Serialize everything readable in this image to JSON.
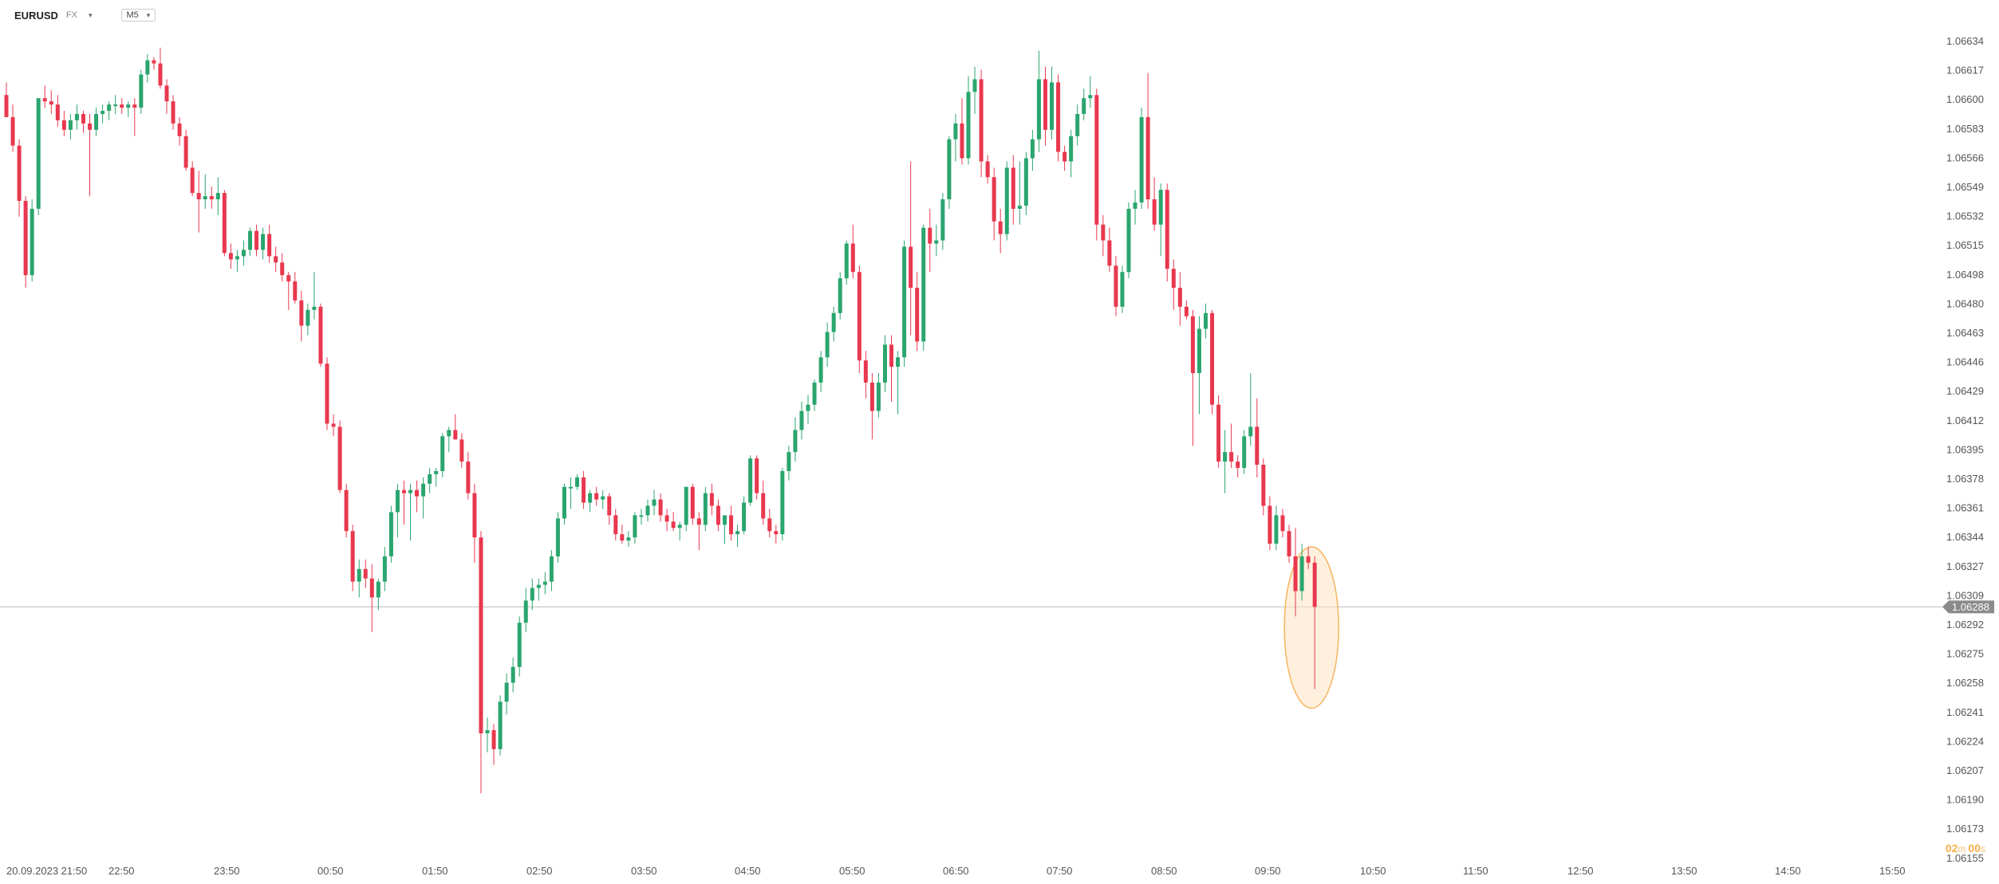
{
  "header": {
    "symbol": "EURUSD",
    "symbol_type": "FX",
    "timeframe": "M5"
  },
  "timer": {
    "minutes": "02",
    "minutes_unit": "m",
    "seconds": "00",
    "seconds_unit": "s"
  },
  "colors": {
    "up": "#2aa56e",
    "down": "#e8384f",
    "grid_line": "#c8c8c8",
    "axis_text": "#555555",
    "price_label_bg": "#8b8b8b",
    "highlight_fill": "#fde6c6",
    "highlight_stroke": "#f5b561"
  },
  "chart_data": {
    "type": "candlestick",
    "timeframe": "M5",
    "current_price": 1.06288,
    "current_price_label": "1.06288",
    "ylim": [
      1.06155,
      1.06655
    ],
    "y_ticks": [
      "1.06634",
      "1.06617",
      "1.06600",
      "1.06583",
      "1.06566",
      "1.06549",
      "1.06532",
      "1.06515",
      "1.06498",
      "1.06480",
      "1.06463",
      "1.06446",
      "1.06429",
      "1.06412",
      "1.06395",
      "1.06378",
      "1.06361",
      "1.06344",
      "1.06327",
      "1.06309",
      "1.06292",
      "1.06275",
      "1.06258",
      "1.06241",
      "1.06224",
      "1.06207",
      "1.06190",
      "1.06173",
      "1.06155"
    ],
    "x_labels": [
      "20.09.2023  21:50",
      "22:50",
      "23:50",
      "00:50",
      "01:50",
      "02:50",
      "03:50",
      "04:50",
      "05:50",
      "06:50",
      "07:50",
      "08:50",
      "09:50",
      "10:50",
      "11:50",
      "12:50",
      "13:50",
      "14:50",
      "15:50"
    ],
    "highlight": "last candle circled",
    "candles": [
      [
        1.06612,
        1.0662,
        1.066,
        1.06598
      ],
      [
        1.06598,
        1.06606,
        1.06576,
        1.0658
      ],
      [
        1.0658,
        1.06584,
        1.06535,
        1.06545
      ],
      [
        1.06545,
        1.06548,
        1.0649,
        1.06498
      ],
      [
        1.06498,
        1.06546,
        1.06494,
        1.0654
      ],
      [
        1.0654,
        1.0661,
        1.06536,
        1.0661
      ],
      [
        1.0661,
        1.06618,
        1.06604,
        1.06608
      ],
      [
        1.06608,
        1.06615,
        1.066,
        1.06606
      ],
      [
        1.06606,
        1.06612,
        1.06592,
        1.06596
      ],
      [
        1.06596,
        1.06602,
        1.06586,
        1.0659
      ],
      [
        1.0659,
        1.066,
        1.06584,
        1.06596
      ],
      [
        1.06596,
        1.06606,
        1.0659,
        1.066
      ],
      [
        1.066,
        1.06602,
        1.06588,
        1.06594
      ],
      [
        1.06594,
        1.066,
        1.06548,
        1.0659
      ],
      [
        1.0659,
        1.06604,
        1.06586,
        1.066
      ],
      [
        1.066,
        1.06606,
        1.06594,
        1.06602
      ],
      [
        1.06602,
        1.06608,
        1.06596,
        1.06606
      ],
      [
        1.06606,
        1.06612,
        1.066,
        1.06606
      ],
      [
        1.06606,
        1.0661,
        1.066,
        1.06604
      ],
      [
        1.06604,
        1.06608,
        1.06598,
        1.06606
      ],
      [
        1.06606,
        1.0661,
        1.06586,
        1.06604
      ],
      [
        1.06604,
        1.06628,
        1.066,
        1.06625
      ],
      [
        1.06625,
        1.06638,
        1.0662,
        1.06634
      ],
      [
        1.06634,
        1.06636,
        1.06628,
        1.06632
      ],
      [
        1.06632,
        1.06642,
        1.06616,
        1.06618
      ],
      [
        1.06618,
        1.06622,
        1.066,
        1.06608
      ],
      [
        1.06608,
        1.06612,
        1.0659,
        1.06594
      ],
      [
        1.06594,
        1.06598,
        1.0658,
        1.06586
      ],
      [
        1.06586,
        1.0659,
        1.06564,
        1.06566
      ],
      [
        1.06566,
        1.0657,
        1.06548,
        1.0655
      ],
      [
        1.0655,
        1.06564,
        1.06525,
        1.06546
      ],
      [
        1.06546,
        1.06562,
        1.0654,
        1.06548
      ],
      [
        1.06548,
        1.06554,
        1.0654,
        1.06546
      ],
      [
        1.06546,
        1.0656,
        1.06536,
        1.0655
      ],
      [
        1.0655,
        1.06552,
        1.0651,
        1.06512
      ],
      [
        1.06512,
        1.06518,
        1.06502,
        1.06508
      ],
      [
        1.06508,
        1.06514,
        1.065,
        1.0651
      ],
      [
        1.0651,
        1.0652,
        1.06504,
        1.06514
      ],
      [
        1.06514,
        1.06528,
        1.0651,
        1.06526
      ],
      [
        1.06526,
        1.0653,
        1.0651,
        1.06514
      ],
      [
        1.06514,
        1.06528,
        1.06508,
        1.06524
      ],
      [
        1.06524,
        1.0653,
        1.06506,
        1.0651
      ],
      [
        1.0651,
        1.06516,
        1.065,
        1.06506
      ],
      [
        1.06506,
        1.06512,
        1.06494,
        1.06498
      ],
      [
        1.06498,
        1.065,
        1.06476,
        1.06494
      ],
      [
        1.06494,
        1.065,
        1.0648,
        1.06482
      ],
      [
        1.06482,
        1.06488,
        1.06456,
        1.06466
      ],
      [
        1.06466,
        1.0648,
        1.0646,
        1.06476
      ],
      [
        1.06476,
        1.065,
        1.0647,
        1.06478
      ],
      [
        1.06478,
        1.0648,
        1.0644,
        1.06442
      ],
      [
        1.06442,
        1.06446,
        1.064,
        1.06404
      ],
      [
        1.06404,
        1.0641,
        1.06396,
        1.06402
      ],
      [
        1.06402,
        1.06406,
        1.0636,
        1.06362
      ],
      [
        1.06362,
        1.06366,
        1.06332,
        1.06336
      ],
      [
        1.06336,
        1.0634,
        1.06298,
        1.06304
      ],
      [
        1.06304,
        1.06318,
        1.06294,
        1.06312
      ],
      [
        1.06312,
        1.06318,
        1.063,
        1.06306
      ],
      [
        1.06306,
        1.06315,
        1.06272,
        1.06294
      ],
      [
        1.06294,
        1.06306,
        1.06286,
        1.06304
      ],
      [
        1.06304,
        1.06326,
        1.06298,
        1.0632
      ],
      [
        1.0632,
        1.06352,
        1.06316,
        1.06348
      ],
      [
        1.06348,
        1.06366,
        1.06332,
        1.06362
      ],
      [
        1.06362,
        1.06368,
        1.0634,
        1.0636
      ],
      [
        1.0636,
        1.06366,
        1.0633,
        1.06362
      ],
      [
        1.06362,
        1.06368,
        1.06348,
        1.06358
      ],
      [
        1.06358,
        1.0637,
        1.06344,
        1.06366
      ],
      [
        1.06366,
        1.06376,
        1.0636,
        1.06372
      ],
      [
        1.06372,
        1.06376,
        1.06364,
        1.06374
      ],
      [
        1.06374,
        1.06398,
        1.0637,
        1.06396
      ],
      [
        1.06396,
        1.06402,
        1.06386,
        1.064
      ],
      [
        1.064,
        1.0641,
        1.06394,
        1.06394
      ],
      [
        1.06394,
        1.06398,
        1.06376,
        1.0638
      ],
      [
        1.0638,
        1.06386,
        1.06356,
        1.0636
      ],
      [
        1.0636,
        1.06366,
        1.06316,
        1.06332
      ],
      [
        1.06332,
        1.06336,
        1.0617,
        1.06208
      ],
      [
        1.06208,
        1.06218,
        1.06196,
        1.0621
      ],
      [
        1.0621,
        1.06214,
        1.06188,
        1.06198
      ],
      [
        1.06198,
        1.06232,
        1.06194,
        1.06228
      ],
      [
        1.06228,
        1.06246,
        1.0622,
        1.0624
      ],
      [
        1.0624,
        1.06256,
        1.06234,
        1.0625
      ],
      [
        1.0625,
        1.06282,
        1.06244,
        1.06278
      ],
      [
        1.06278,
        1.063,
        1.06272,
        1.06292
      ],
      [
        1.06292,
        1.06306,
        1.06286,
        1.063
      ],
      [
        1.063,
        1.06306,
        1.06292,
        1.06302
      ],
      [
        1.06302,
        1.0631,
        1.06296,
        1.06304
      ],
      [
        1.06304,
        1.06324,
        1.06298,
        1.0632
      ],
      [
        1.0632,
        1.06348,
        1.06316,
        1.06344
      ],
      [
        1.06344,
        1.06366,
        1.0634,
        1.06364
      ],
      [
        1.06364,
        1.0637,
        1.0635,
        1.06364
      ],
      [
        1.06364,
        1.06372,
        1.06362,
        1.0637
      ],
      [
        1.0637,
        1.06374,
        1.0635,
        1.06354
      ],
      [
        1.06354,
        1.06362,
        1.06348,
        1.0636
      ],
      [
        1.0636,
        1.06364,
        1.06352,
        1.06356
      ],
      [
        1.06356,
        1.06362,
        1.0635,
        1.06358
      ],
      [
        1.06358,
        1.0636,
        1.0634,
        1.06346
      ],
      [
        1.06346,
        1.0635,
        1.0633,
        1.06334
      ],
      [
        1.06334,
        1.0634,
        1.06328,
        1.0633
      ],
      [
        1.0633,
        1.06336,
        1.06326,
        1.06332
      ],
      [
        1.06332,
        1.06348,
        1.06328,
        1.06346
      ],
      [
        1.06346,
        1.0635,
        1.0634,
        1.06346
      ],
      [
        1.06346,
        1.06356,
        1.06342,
        1.06352
      ],
      [
        1.06352,
        1.06362,
        1.06346,
        1.06356
      ],
      [
        1.06356,
        1.0636,
        1.06342,
        1.06346
      ],
      [
        1.06346,
        1.0635,
        1.06336,
        1.06342
      ],
      [
        1.06342,
        1.06348,
        1.06336,
        1.06338
      ],
      [
        1.06338,
        1.06342,
        1.0633,
        1.0634
      ],
      [
        1.0634,
        1.06364,
        1.06336,
        1.06364
      ],
      [
        1.06364,
        1.06366,
        1.0634,
        1.06344
      ],
      [
        1.06344,
        1.06348,
        1.06324,
        1.0634
      ],
      [
        1.0634,
        1.06364,
        1.06336,
        1.0636
      ],
      [
        1.0636,
        1.06366,
        1.06346,
        1.06352
      ],
      [
        1.06352,
        1.06356,
        1.06336,
        1.0634
      ],
      [
        1.0634,
        1.06346,
        1.06328,
        1.06346
      ],
      [
        1.06346,
        1.06352,
        1.0633,
        1.06334
      ],
      [
        1.06334,
        1.0634,
        1.06326,
        1.06336
      ],
      [
        1.06336,
        1.06358,
        1.06334,
        1.06354
      ],
      [
        1.06354,
        1.06384,
        1.06352,
        1.06382
      ],
      [
        1.06382,
        1.06384,
        1.06356,
        1.0636
      ],
      [
        1.0636,
        1.06368,
        1.0634,
        1.06344
      ],
      [
        1.06344,
        1.0635,
        1.06332,
        1.06336
      ],
      [
        1.06336,
        1.0634,
        1.06328,
        1.06334
      ],
      [
        1.06334,
        1.06376,
        1.0633,
        1.06374
      ],
      [
        1.06374,
        1.0639,
        1.06368,
        1.06386
      ],
      [
        1.06386,
        1.06408,
        1.0638,
        1.064
      ],
      [
        1.064,
        1.06418,
        1.06394,
        1.06412
      ],
      [
        1.06412,
        1.06422,
        1.06404,
        1.06416
      ],
      [
        1.06416,
        1.06432,
        1.06412,
        1.0643
      ],
      [
        1.0643,
        1.0645,
        1.06424,
        1.06446
      ],
      [
        1.06446,
        1.06468,
        1.0644,
        1.06462
      ],
      [
        1.06462,
        1.06478,
        1.06456,
        1.06474
      ],
      [
        1.06474,
        1.065,
        1.0647,
        1.06496
      ],
      [
        1.06496,
        1.0652,
        1.06492,
        1.06518
      ],
      [
        1.06518,
        1.0653,
        1.06496,
        1.065
      ],
      [
        1.065,
        1.06504,
        1.06436,
        1.06444
      ],
      [
        1.06444,
        1.0645,
        1.0642,
        1.0643
      ],
      [
        1.0643,
        1.06436,
        1.06394,
        1.06412
      ],
      [
        1.06412,
        1.06436,
        1.06408,
        1.0643
      ],
      [
        1.0643,
        1.0646,
        1.06424,
        1.06454
      ],
      [
        1.06454,
        1.0646,
        1.06418,
        1.0644
      ],
      [
        1.0644,
        1.0645,
        1.0641,
        1.06446
      ],
      [
        1.06446,
        1.0652,
        1.0644,
        1.06516
      ],
      [
        1.06516,
        1.0657,
        1.0646,
        1.0649
      ],
      [
        1.0649,
        1.065,
        1.0645,
        1.06456
      ],
      [
        1.06456,
        1.0653,
        1.0645,
        1.06528
      ],
      [
        1.06528,
        1.0654,
        1.065,
        1.06518
      ],
      [
        1.06518,
        1.0653,
        1.0651,
        1.0652
      ],
      [
        1.0652,
        1.0655,
        1.06514,
        1.06546
      ],
      [
        1.06546,
        1.06586,
        1.0654,
        1.06584
      ],
      [
        1.06584,
        1.066,
        1.0657,
        1.06594
      ],
      [
        1.06594,
        1.0661,
        1.06568,
        1.06572
      ],
      [
        1.06572,
        1.06624,
        1.06568,
        1.06614
      ],
      [
        1.06614,
        1.0663,
        1.066,
        1.06622
      ],
      [
        1.06622,
        1.06628,
        1.0656,
        1.0657
      ],
      [
        1.0657,
        1.06574,
        1.06556,
        1.0656
      ],
      [
        1.0656,
        1.06566,
        1.0652,
        1.06532
      ],
      [
        1.06532,
        1.0654,
        1.06512,
        1.06524
      ],
      [
        1.06524,
        1.0657,
        1.0652,
        1.06566
      ],
      [
        1.06566,
        1.06574,
        1.0653,
        1.0654
      ],
      [
        1.0654,
        1.0657,
        1.0653,
        1.06542
      ],
      [
        1.06542,
        1.06576,
        1.06536,
        1.06572
      ],
      [
        1.06572,
        1.0659,
        1.06564,
        1.06584
      ],
      [
        1.06584,
        1.0664,
        1.06576,
        1.06622
      ],
      [
        1.06622,
        1.0663,
        1.0658,
        1.0659
      ],
      [
        1.0659,
        1.0663,
        1.06584,
        1.0662
      ],
      [
        1.0662,
        1.06625,
        1.0657,
        1.06576
      ],
      [
        1.06576,
        1.0658,
        1.06564,
        1.0657
      ],
      [
        1.0657,
        1.0659,
        1.0656,
        1.06586
      ],
      [
        1.06586,
        1.06606,
        1.0658,
        1.066
      ],
      [
        1.066,
        1.06616,
        1.06596,
        1.0661
      ],
      [
        1.0661,
        1.06624,
        1.06604,
        1.06612
      ],
      [
        1.06612,
        1.06616,
        1.0652,
        1.0653
      ],
      [
        1.0653,
        1.06536,
        1.0651,
        1.0652
      ],
      [
        1.0652,
        1.06528,
        1.065,
        1.06504
      ],
      [
        1.06504,
        1.0651,
        1.06472,
        1.06478
      ],
      [
        1.06478,
        1.06504,
        1.06474,
        1.065
      ],
      [
        1.065,
        1.06544,
        1.06496,
        1.0654
      ],
      [
        1.0654,
        1.06552,
        1.0653,
        1.06544
      ],
      [
        1.06544,
        1.06604,
        1.0654,
        1.06598
      ],
      [
        1.06598,
        1.06626,
        1.0654,
        1.06546
      ],
      [
        1.06546,
        1.0656,
        1.06526,
        1.0653
      ],
      [
        1.0653,
        1.06556,
        1.0651,
        1.06552
      ],
      [
        1.06552,
        1.06556,
        1.06494,
        1.06502
      ],
      [
        1.06502,
        1.06508,
        1.06476,
        1.0649
      ],
      [
        1.0649,
        1.065,
        1.06466,
        1.06478
      ],
      [
        1.06478,
        1.06482,
        1.0647,
        1.06472
      ],
      [
        1.06472,
        1.06476,
        1.0639,
        1.06436
      ],
      [
        1.06436,
        1.06472,
        1.0641,
        1.06464
      ],
      [
        1.06464,
        1.0648,
        1.06458,
        1.06474
      ],
      [
        1.06474,
        1.06476,
        1.0641,
        1.06416
      ],
      [
        1.06416,
        1.06422,
        1.06376,
        1.0638
      ],
      [
        1.0638,
        1.064,
        1.0636,
        1.06386
      ],
      [
        1.06386,
        1.06404,
        1.06376,
        1.0638
      ],
      [
        1.0638,
        1.06384,
        1.0637,
        1.06376
      ],
      [
        1.06376,
        1.064,
        1.06372,
        1.06396
      ],
      [
        1.06396,
        1.06436,
        1.0639,
        1.06402
      ],
      [
        1.06402,
        1.0642,
        1.0637,
        1.06378
      ],
      [
        1.06378,
        1.06382,
        1.06346,
        1.06352
      ],
      [
        1.06352,
        1.06358,
        1.06324,
        1.06328
      ],
      [
        1.06328,
        1.06352,
        1.06324,
        1.06346
      ],
      [
        1.06346,
        1.0635,
        1.06332,
        1.06336
      ],
      [
        1.06336,
        1.0634,
        1.06316,
        1.0632
      ],
      [
        1.0632,
        1.06338,
        1.06282,
        1.06298
      ],
      [
        1.06298,
        1.06328,
        1.06292,
        1.0632
      ],
      [
        1.0632,
        1.06326,
        1.06312,
        1.06316
      ],
      [
        1.06316,
        1.0632,
        1.06236,
        1.06288
      ]
    ]
  }
}
